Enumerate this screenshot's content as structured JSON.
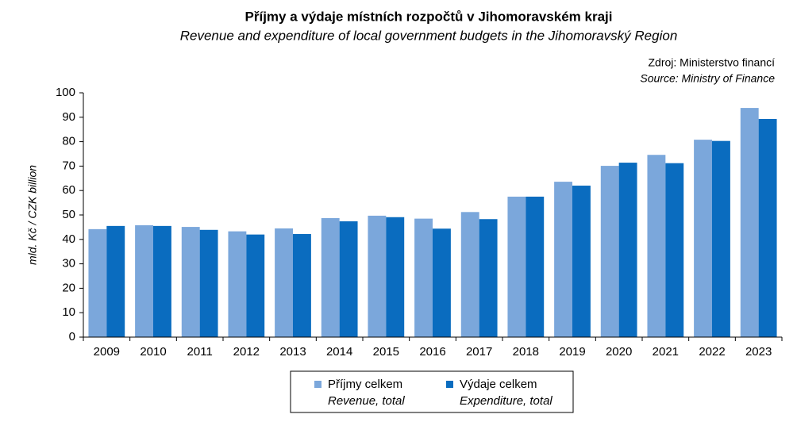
{
  "chart_data": {
    "type": "bar",
    "title": "Příjmy a výdaje místních rozpočtů v Jihomoravském kraji",
    "subtitle": "Revenue and expenditure of local government budgets in the Jihomoravský Region",
    "source": [
      "Zdroj: Ministerstvo financí",
      "Source: Ministry of Finance"
    ],
    "y_label": "mld. Kč / CZK billion",
    "categories": [
      "2009",
      "2010",
      "2011",
      "2012",
      "2013",
      "2014",
      "2015",
      "2016",
      "2017",
      "2018",
      "2019",
      "2020",
      "2021",
      "2022",
      "2023"
    ],
    "series": [
      {
        "name": "Příjmy celkem",
        "name_en": "Revenue, total",
        "color": "#7ba7db",
        "values": [
          44.2,
          45.8,
          45.1,
          43.3,
          44.5,
          48.7,
          49.7,
          48.5,
          51.2,
          57.5,
          63.6,
          70.1,
          74.6,
          80.8,
          93.8
        ]
      },
      {
        "name": "Výdaje celkem",
        "name_en": "Expenditure, total",
        "color": "#0a6cbf",
        "values": [
          45.5,
          45.5,
          43.9,
          42.0,
          42.2,
          47.4,
          49.1,
          44.4,
          48.3,
          57.5,
          62.0,
          71.4,
          71.2,
          80.3,
          89.3
        ]
      }
    ],
    "ylim": [
      0,
      100
    ],
    "yticks": [
      0,
      10,
      20,
      30,
      40,
      50,
      60,
      70,
      80,
      90,
      100
    ],
    "grid": false
  }
}
